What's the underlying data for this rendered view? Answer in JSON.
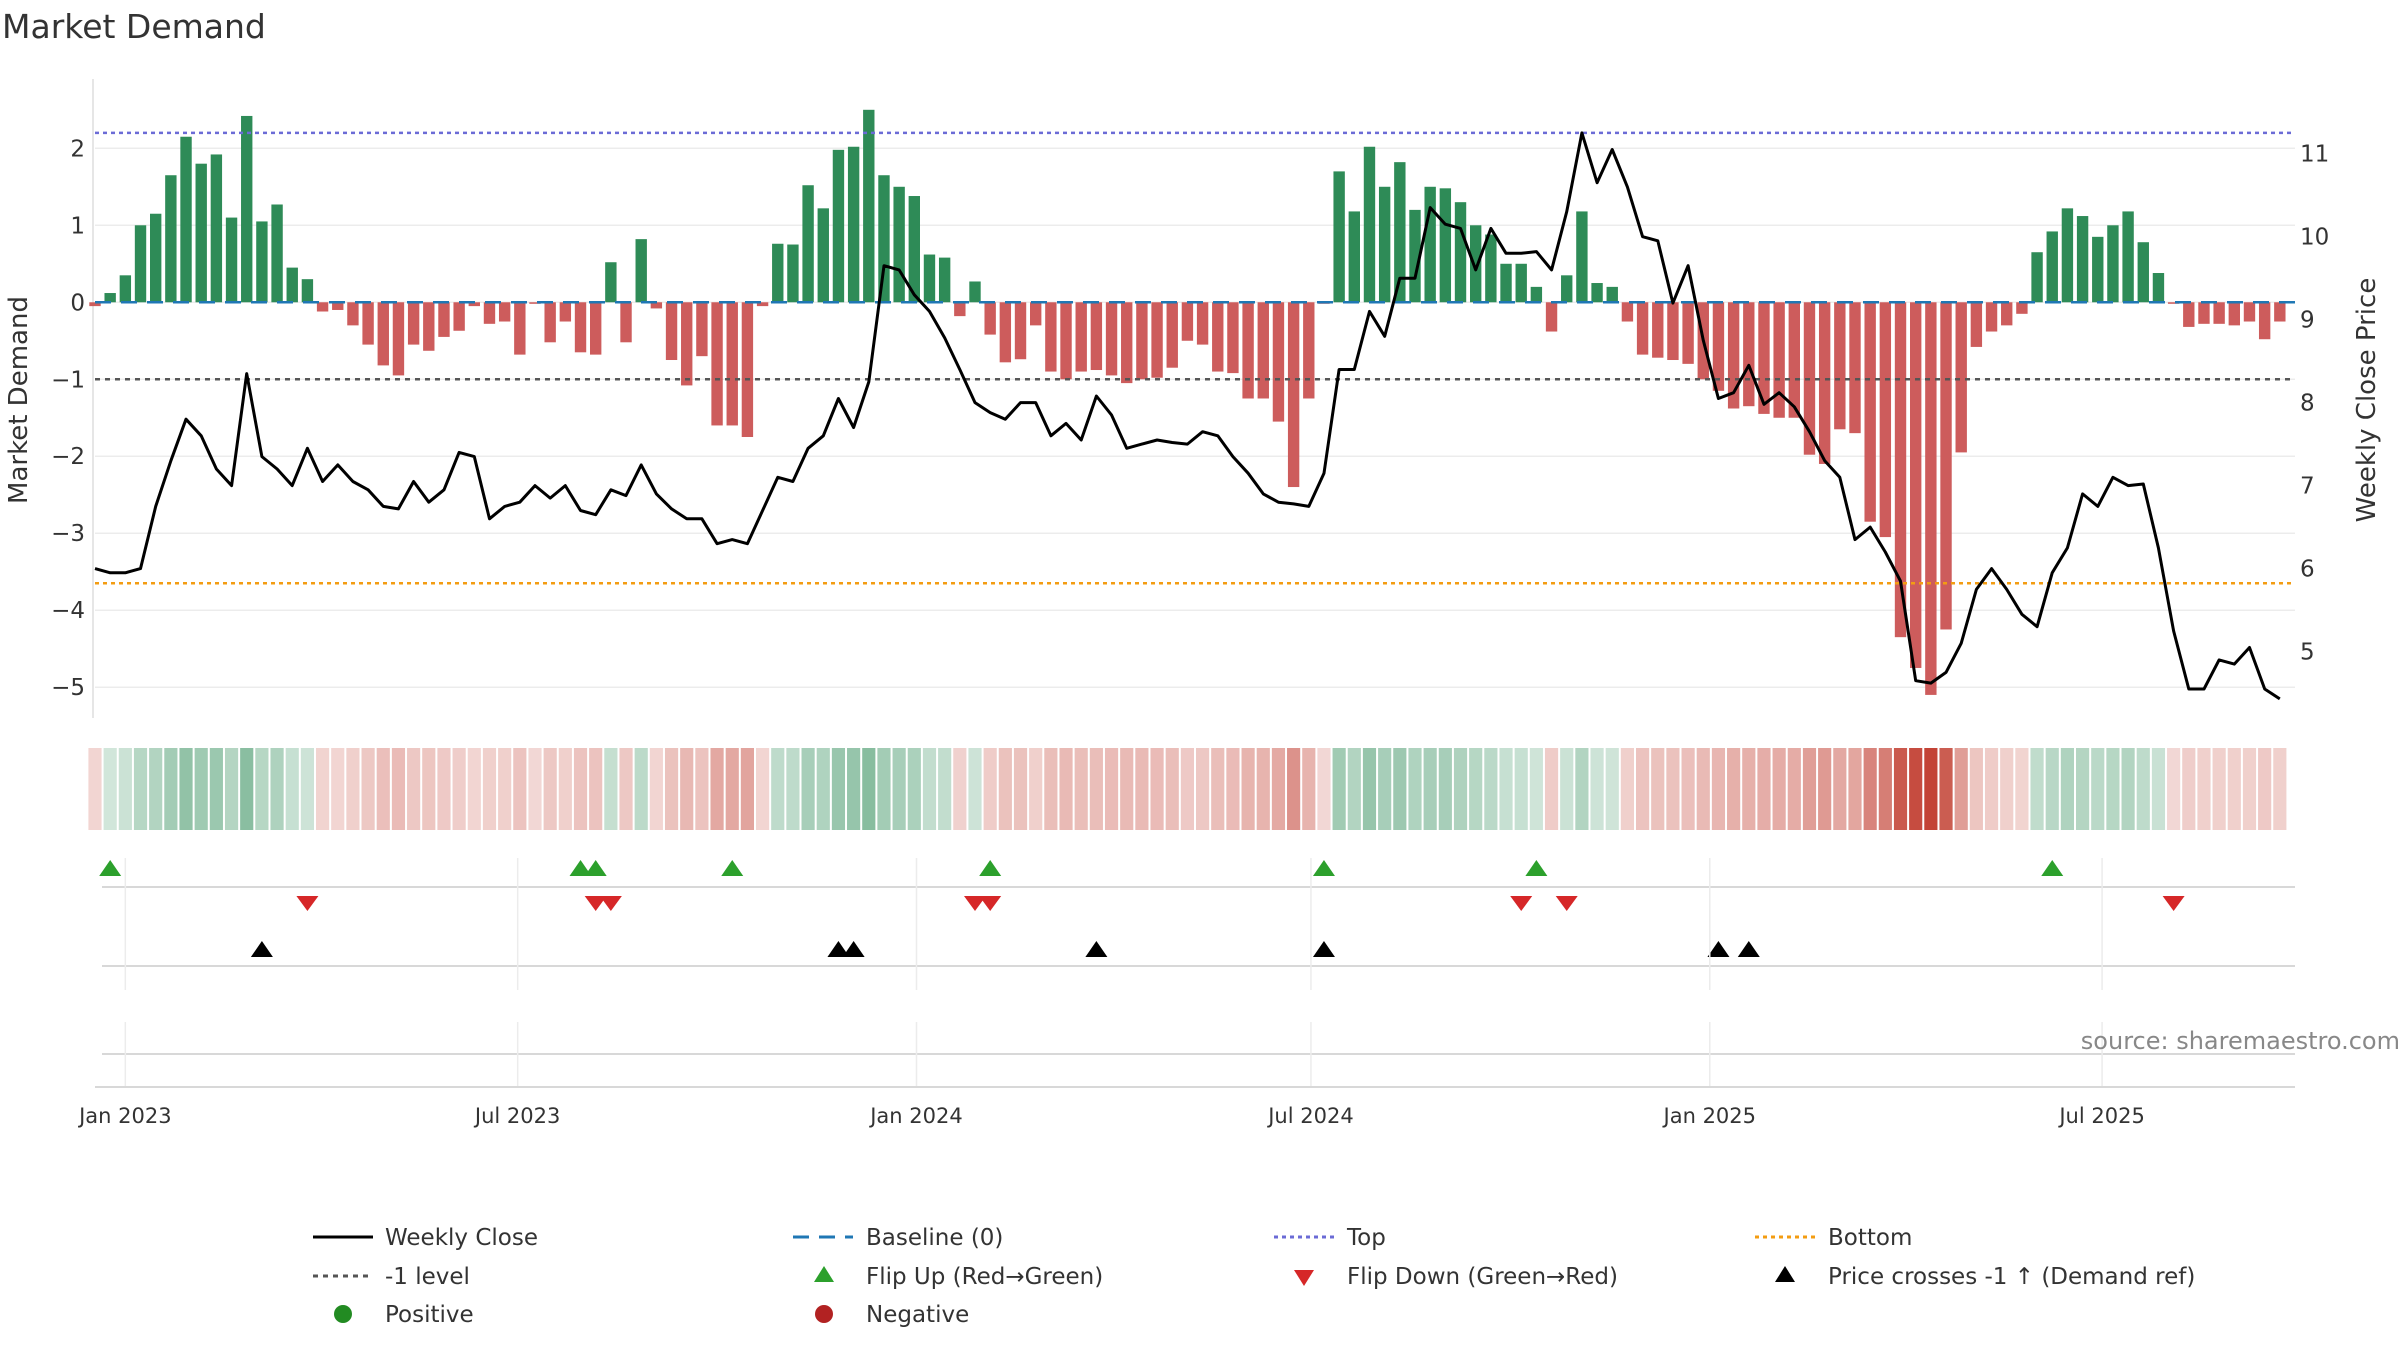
{
  "title": "Market Demand",
  "source": "source: sharemaestro.com",
  "colors": {
    "positive": "#2e8b57",
    "negative": "#cd5c5c",
    "price": "#000000",
    "baseline": "#1f77b4",
    "top": "#6b6bd6",
    "minus1": "#555555",
    "bottom": "#f39c12",
    "flip_up": "#2ca02c",
    "flip_down": "#d62728",
    "cross": "#000000"
  },
  "legend": {
    "weekly_close": "Weekly Close",
    "baseline": "Baseline (0)",
    "top": "Top",
    "bottom": "Bottom",
    "minus1": "-1 level",
    "flip_up": "Flip Up (Red→Green)",
    "flip_down": "Flip Down (Green→Red)",
    "cross": "Price crosses -1 ↑ (Demand ref)",
    "positive": "Positive",
    "negative": "Negative"
  },
  "chart_data": {
    "type": "bar",
    "title": "Market Demand",
    "ylabel": "Market Demand",
    "y2label": "Weekly Close Price",
    "ylim": [
      -5.4,
      2.9
    ],
    "y2lim": [
      4.2,
      11.9
    ],
    "yticks": [
      2,
      1,
      0,
      -1,
      -2,
      -3,
      -4,
      -5
    ],
    "ytick_labels": [
      "2",
      "1",
      "0",
      "−1",
      "−2",
      "−3",
      "−4",
      "−5"
    ],
    "y2ticks": [
      11,
      10,
      9,
      8,
      7,
      6,
      5
    ],
    "y2tick_labels": [
      "11",
      "10",
      "9",
      "8",
      "7",
      "6",
      "5"
    ],
    "xticks": [
      {
        "date": "2023-01-01",
        "label": "Jan 2023"
      },
      {
        "date": "2023-07-01",
        "label": "Jul 2023"
      },
      {
        "date": "2024-01-01",
        "label": "Jan 2024"
      },
      {
        "date": "2024-07-01",
        "label": "Jul 2024"
      },
      {
        "date": "2025-01-01",
        "label": "Jan 2025"
      },
      {
        "date": "2025-07-01",
        "label": "Jul 2025"
      }
    ],
    "x_start": "2022-12-18",
    "x_end": "2025-09-28",
    "reference_lines": {
      "top": 2.2,
      "minus1": -1.0,
      "bottom": -3.65,
      "baseline": 0
    },
    "series": [
      {
        "name": "Market Demand",
        "type": "bar",
        "dates": [
          "2022-12-18",
          "2022-12-25",
          "2023-01-01",
          "2023-01-08",
          "2023-01-15",
          "2023-01-22",
          "2023-01-29",
          "2023-02-05",
          "2023-02-12",
          "2023-02-19",
          "2023-02-26",
          "2023-03-05",
          "2023-03-12",
          "2023-03-19",
          "2023-03-26",
          "2023-04-02",
          "2023-04-09",
          "2023-04-16",
          "2023-04-23",
          "2023-04-30",
          "2023-05-07",
          "2023-05-14",
          "2023-05-21",
          "2023-05-28",
          "2023-06-04",
          "2023-06-11",
          "2023-06-18",
          "2023-06-25",
          "2023-07-02",
          "2023-07-09",
          "2023-07-16",
          "2023-07-23",
          "2023-07-30",
          "2023-08-06",
          "2023-08-13",
          "2023-08-20",
          "2023-08-27",
          "2023-09-03",
          "2023-09-10",
          "2023-09-17",
          "2023-09-24",
          "2023-10-01",
          "2023-10-08",
          "2023-10-15",
          "2023-10-22",
          "2023-10-29",
          "2023-11-05",
          "2023-11-12",
          "2023-11-19",
          "2023-11-26",
          "2023-12-03",
          "2023-12-10",
          "2023-12-17",
          "2023-12-24",
          "2023-12-31",
          "2024-01-07",
          "2024-01-14",
          "2024-01-21",
          "2024-01-28",
          "2024-02-04",
          "2024-02-11",
          "2024-02-18",
          "2024-02-25",
          "2024-03-03",
          "2024-03-10",
          "2024-03-17",
          "2024-03-24",
          "2024-03-31",
          "2024-04-07",
          "2024-04-14",
          "2024-04-21",
          "2024-04-28",
          "2024-05-05",
          "2024-05-12",
          "2024-05-19",
          "2024-05-26",
          "2024-06-02",
          "2024-06-09",
          "2024-06-16",
          "2024-06-23",
          "2024-06-30",
          "2024-07-07",
          "2024-07-14",
          "2024-07-21",
          "2024-07-28",
          "2024-08-04",
          "2024-08-11",
          "2024-08-18",
          "2024-08-25",
          "2024-09-01",
          "2024-09-08",
          "2024-09-15",
          "2024-09-22",
          "2024-09-29",
          "2024-10-06",
          "2024-10-13",
          "2024-10-20",
          "2024-10-27",
          "2024-11-03",
          "2024-11-10",
          "2024-11-17",
          "2024-11-24",
          "2024-12-01",
          "2024-12-08",
          "2024-12-15",
          "2024-12-22",
          "2024-12-29",
          "2025-01-05",
          "2025-01-12",
          "2025-01-19",
          "2025-01-26",
          "2025-02-02",
          "2025-02-09",
          "2025-02-16",
          "2025-02-23",
          "2025-03-02",
          "2025-03-09",
          "2025-03-16",
          "2025-03-23",
          "2025-03-30",
          "2025-04-06",
          "2025-04-13",
          "2025-04-20",
          "2025-04-27",
          "2025-05-04",
          "2025-05-11",
          "2025-05-18",
          "2025-05-25",
          "2025-06-01",
          "2025-06-08",
          "2025-06-15",
          "2025-06-22",
          "2025-06-29",
          "2025-07-06",
          "2025-07-13",
          "2025-07-20",
          "2025-07-27",
          "2025-08-03",
          "2025-08-10",
          "2025-08-17",
          "2025-08-24",
          "2025-08-31",
          "2025-09-07",
          "2025-09-14",
          "2025-09-21"
        ],
        "values": [
          -0.05,
          0.12,
          0.35,
          1.0,
          1.15,
          1.65,
          2.15,
          1.8,
          1.92,
          1.1,
          2.42,
          1.05,
          1.27,
          0.45,
          0.3,
          -0.12,
          -0.1,
          -0.3,
          -0.55,
          -0.82,
          -0.95,
          -0.55,
          -0.63,
          -0.45,
          -0.37,
          -0.05,
          -0.28,
          -0.25,
          -0.68,
          -0.02,
          -0.52,
          -0.25,
          -0.65,
          -0.68,
          0.52,
          -0.52,
          0.82,
          -0.08,
          -0.75,
          -1.08,
          -0.7,
          -1.6,
          -1.6,
          -1.75,
          -0.05,
          0.76,
          0.75,
          1.52,
          1.22,
          1.98,
          2.02,
          2.5,
          1.65,
          1.5,
          1.38,
          0.62,
          0.58,
          -0.18,
          0.27,
          -0.42,
          -0.78,
          -0.74,
          -0.3,
          -0.9,
          -1.0,
          -0.9,
          -0.88,
          -0.95,
          -1.05,
          -1.0,
          -0.98,
          -0.85,
          -0.5,
          -0.55,
          -0.9,
          -0.92,
          -1.25,
          -1.25,
          -1.55,
          -2.4,
          -1.25,
          -0.02,
          1.7,
          1.18,
          2.02,
          1.5,
          1.82,
          1.2,
          1.5,
          1.48,
          1.3,
          1.0,
          0.88,
          0.5,
          0.5,
          0.2,
          -0.38,
          0.35,
          1.18,
          0.25,
          0.2,
          -0.25,
          -0.68,
          -0.72,
          -0.75,
          -0.8,
          -1.0,
          -1.15,
          -1.38,
          -1.35,
          -1.45,
          -1.5,
          -1.5,
          -1.98,
          -2.1,
          -1.65,
          -1.7,
          -2.85,
          -3.05,
          -4.35,
          -4.75,
          -5.1,
          -4.25,
          -1.95,
          -0.58,
          -0.38,
          -0.3,
          -0.15,
          0.65,
          0.92,
          1.22,
          1.12,
          0.85,
          1.0,
          1.18,
          0.78,
          0.38,
          -0.02,
          -0.32,
          -0.28,
          -0.28,
          -0.3,
          -0.25,
          -0.48,
          -0.25
        ]
      },
      {
        "name": "Weekly Close",
        "type": "line",
        "axis": "y2",
        "values": [
          6.0,
          5.95,
          5.95,
          6.0,
          6.75,
          7.3,
          7.8,
          7.6,
          7.2,
          7.0,
          8.35,
          7.35,
          7.2,
          7.0,
          7.45,
          7.05,
          7.25,
          7.05,
          6.95,
          6.75,
          6.72,
          7.05,
          6.8,
          6.95,
          7.4,
          7.35,
          6.6,
          6.75,
          6.8,
          7.0,
          6.85,
          7.0,
          6.7,
          6.65,
          6.95,
          6.88,
          7.25,
          6.9,
          6.72,
          6.6,
          6.6,
          6.3,
          6.35,
          6.3,
          6.7,
          7.1,
          7.05,
          7.45,
          7.6,
          8.05,
          7.7,
          8.25,
          9.65,
          9.6,
          9.3,
          9.1,
          8.78,
          8.4,
          8.0,
          7.88,
          7.8,
          8.0,
          8.0,
          7.6,
          7.75,
          7.55,
          8.08,
          7.85,
          7.45,
          7.5,
          7.55,
          7.52,
          7.5,
          7.65,
          7.6,
          7.35,
          7.15,
          6.9,
          6.8,
          6.78,
          6.75,
          7.15,
          8.4,
          8.4,
          9.1,
          8.8,
          9.5,
          9.5,
          10.35,
          10.15,
          10.1,
          9.6,
          10.1,
          9.8,
          9.8,
          9.82,
          9.6,
          10.3,
          11.25,
          10.65,
          11.05,
          10.6,
          10.0,
          9.95,
          9.2,
          9.65,
          8.75,
          8.05,
          8.12,
          8.45,
          7.98,
          8.12,
          7.95,
          7.65,
          7.3,
          7.1,
          6.35,
          6.5,
          6.2,
          5.85,
          4.65,
          4.62,
          4.75,
          5.1,
          5.75,
          6.0,
          5.75,
          5.45,
          5.3,
          5.95,
          6.25,
          6.9,
          6.75,
          7.1,
          7.0,
          7.02,
          6.25,
          5.25,
          4.55,
          4.55,
          4.9,
          4.85,
          5.05,
          4.55,
          4.43
        ]
      }
    ],
    "flip_up_dates": [
      "2022-12-25",
      "2023-07-30",
      "2023-08-06",
      "2023-10-08",
      "2024-02-04",
      "2024-07-07",
      "2024-10-13",
      "2025-06-08"
    ],
    "flip_down_dates": [
      "2023-03-26",
      "2023-08-06",
      "2023-08-13",
      "2024-01-28",
      "2024-02-04",
      "2024-10-06",
      "2024-10-27",
      "2025-08-03"
    ],
    "cross_dates": [
      "2023-03-05",
      "2023-11-26",
      "2023-12-03",
      "2024-03-24",
      "2024-07-07",
      "2025-01-05",
      "2025-01-19"
    ]
  }
}
